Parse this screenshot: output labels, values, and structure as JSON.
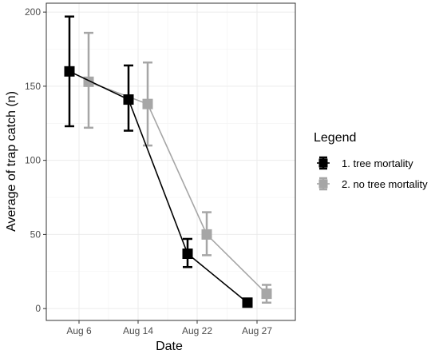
{
  "chart_data": {
    "type": "line",
    "xlabel": "Date",
    "ylabel": "Average of trap catch (n)",
    "x_ticks": [
      "Aug 6",
      "Aug 14",
      "Aug 22",
      "Aug 27"
    ],
    "y_ticks": [
      "0",
      "50",
      "100",
      "150",
      "200"
    ],
    "ylim": [
      -8,
      206
    ],
    "grid": true,
    "legend": {
      "title": "Legend",
      "position": "right"
    },
    "series": [
      {
        "name": "1. tree mortality",
        "color": "#000000",
        "points": [
          {
            "x": "Aug 6",
            "offset": -1,
            "y": 160,
            "lo": 123,
            "hi": 197
          },
          {
            "x": "Aug 14",
            "offset": -1,
            "y": 141,
            "lo": 120,
            "hi": 164
          },
          {
            "x": "Aug 22",
            "offset": -1,
            "y": 37,
            "lo": 28,
            "hi": 47
          },
          {
            "x": "Aug 27",
            "offset": -1,
            "y": 4,
            "lo": null,
            "hi": null
          }
        ]
      },
      {
        "name": "2. no tree mortality",
        "color": "#a6a6a6",
        "points": [
          {
            "x": "Aug 6",
            "offset": 1,
            "y": 153,
            "lo": 122,
            "hi": 186
          },
          {
            "x": "Aug 14",
            "offset": 1,
            "y": 138,
            "lo": 110,
            "hi": 166
          },
          {
            "x": "Aug 22",
            "offset": 1,
            "y": 50,
            "lo": 36,
            "hi": 65
          },
          {
            "x": "Aug 27",
            "offset": 1,
            "y": 10,
            "lo": 4,
            "hi": 16
          }
        ]
      }
    ]
  }
}
